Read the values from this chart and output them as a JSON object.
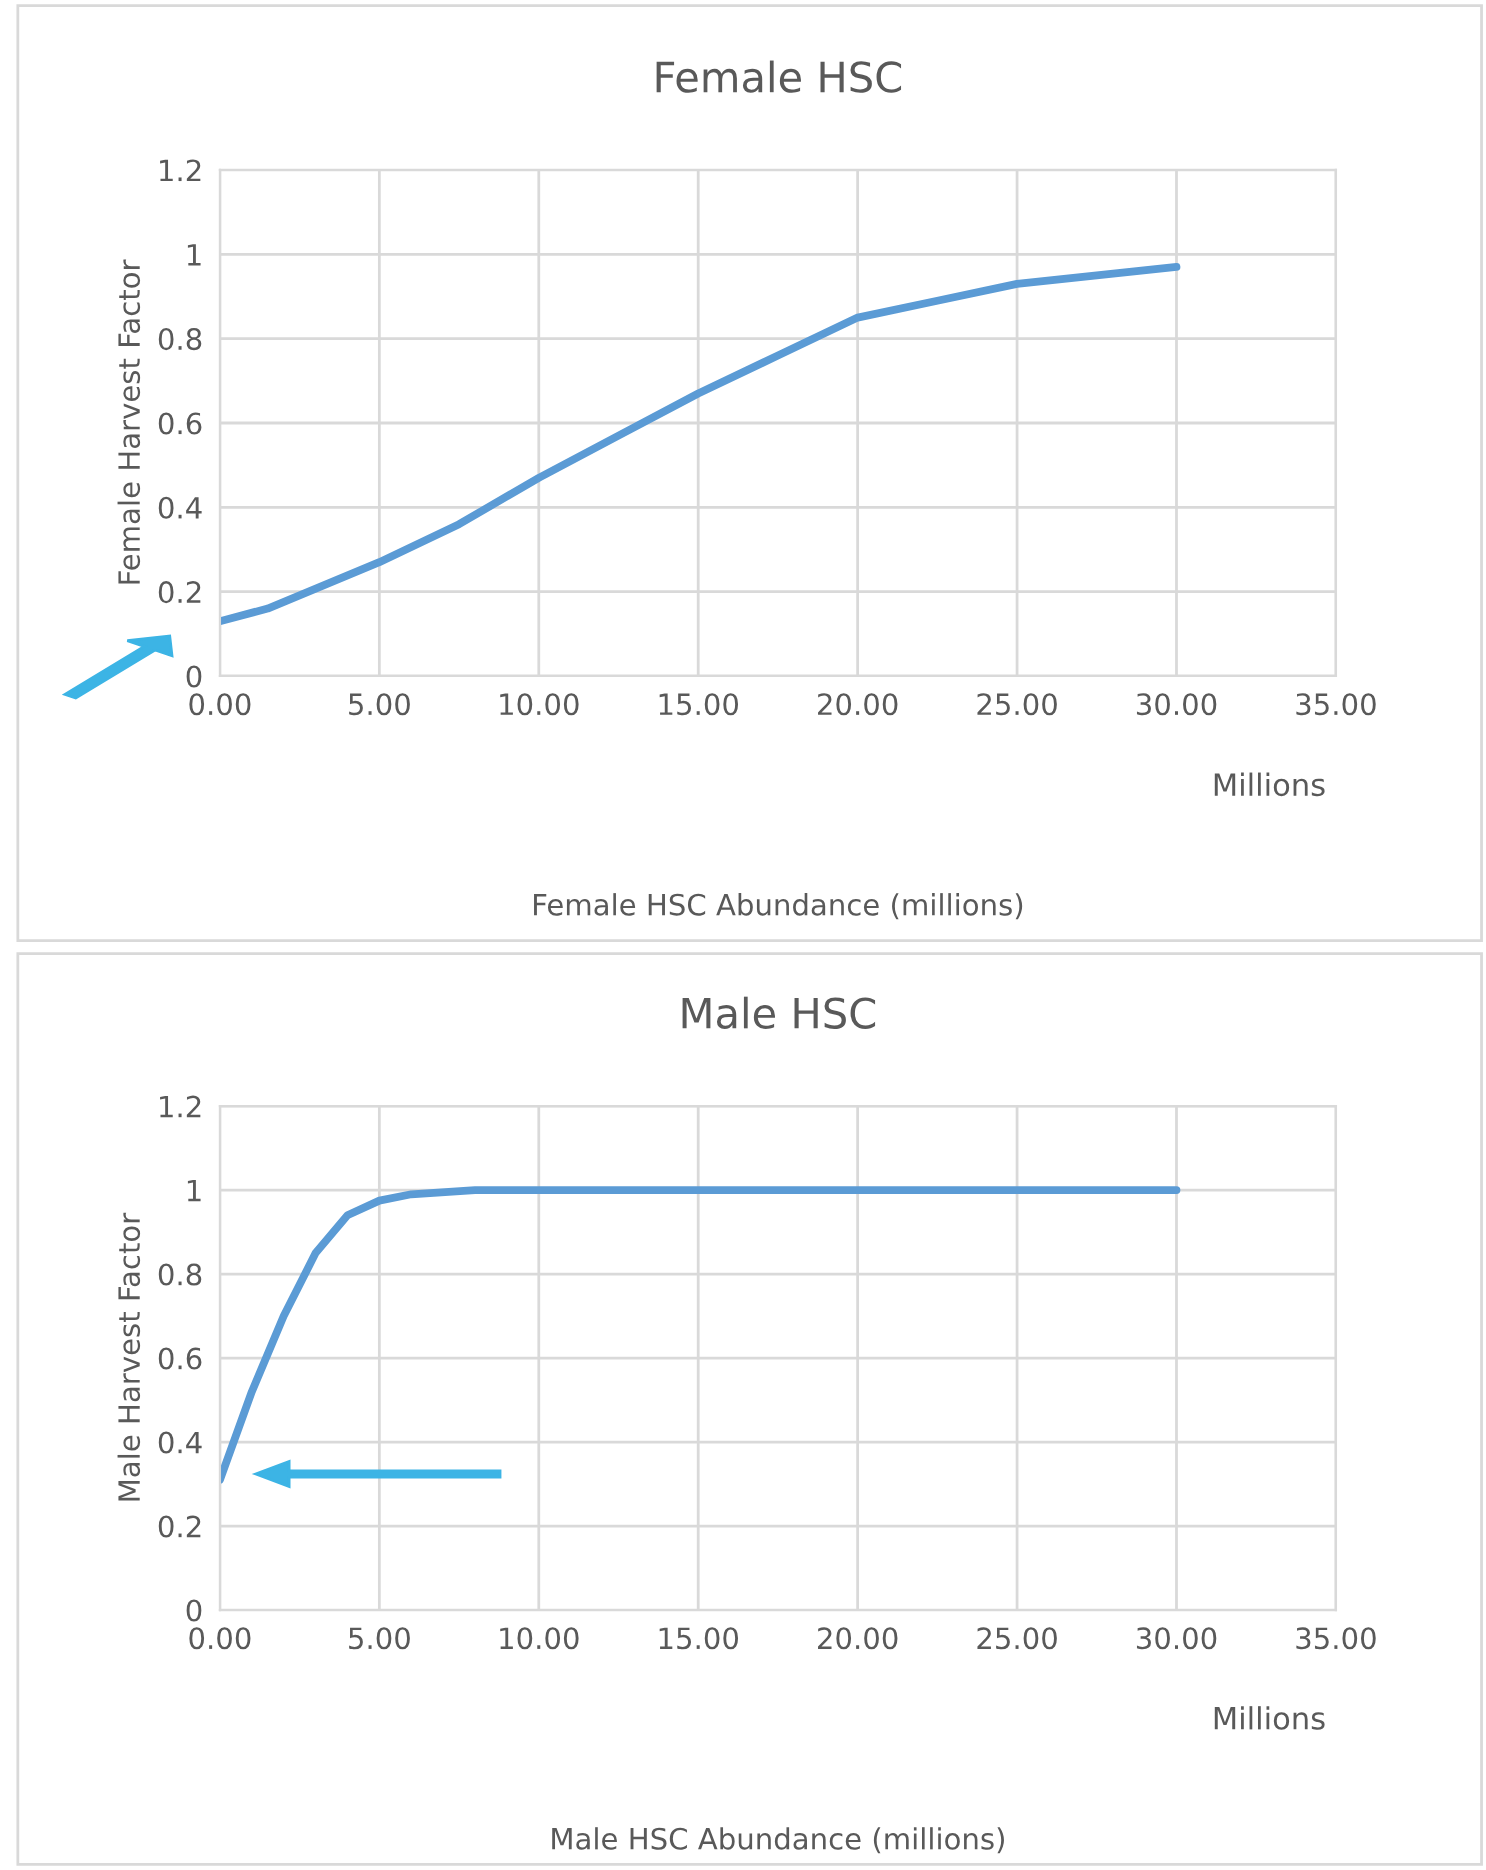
{
  "chart_data": [
    {
      "type": "line",
      "title": "Female HSC",
      "xlabel": "Female HSC Abundance (millions)",
      "ylabel": "Female Harvest Factor",
      "annotations": [
        "Millions"
      ],
      "x": [
        0,
        1.5,
        5,
        7.5,
        10,
        12.5,
        15,
        17.5,
        20,
        22.5,
        25,
        27.5,
        30
      ],
      "series": [
        {
          "color": "#5b9bd5",
          "values": [
            0.13,
            0.16,
            0.27,
            0.36,
            0.47,
            0.57,
            0.67,
            0.76,
            0.85,
            0.89,
            0.93,
            0.95,
            0.97
          ]
        }
      ],
      "xlim": [
        0,
        35
      ],
      "ylim": [
        0,
        1.2
      ],
      "xticks": [
        {
          "value": 0,
          "label": "0.00"
        },
        {
          "value": 5,
          "label": "5.00"
        },
        {
          "value": 10,
          "label": "10.00"
        },
        {
          "value": 15,
          "label": "15.00"
        },
        {
          "value": 20,
          "label": "20.00"
        },
        {
          "value": 25,
          "label": "25.00"
        },
        {
          "value": 30,
          "label": "30.00"
        },
        {
          "value": 35,
          "label": "35.00"
        }
      ],
      "yticks": [
        0,
        0.2,
        0.4,
        0.6,
        0.8,
        1,
        1.2
      ],
      "grid": true,
      "marker": "none",
      "line_style": "solid"
    },
    {
      "type": "line",
      "title": "Male HSC",
      "xlabel": "Male HSC Abundance (millions)",
      "ylabel": "Male Harvest Factor",
      "annotations": [
        "Millions"
      ],
      "x": [
        0,
        1,
        2,
        3,
        4,
        5,
        6,
        8,
        10,
        15,
        20,
        25,
        30
      ],
      "series": [
        {
          "color": "#5b9bd5",
          "values": [
            0.31,
            0.52,
            0.7,
            0.85,
            0.94,
            0.975,
            0.99,
            1,
            1,
            1,
            1,
            1,
            1
          ]
        }
      ],
      "xlim": [
        0,
        35
      ],
      "ylim": [
        0,
        1.2
      ],
      "xticks": [
        {
          "value": 0,
          "label": "0.00"
        },
        {
          "value": 5,
          "label": "5.00"
        },
        {
          "value": 10,
          "label": "10.00"
        },
        {
          "value": 15,
          "label": "15.00"
        },
        {
          "value": 20,
          "label": "20.00"
        },
        {
          "value": 25,
          "label": "25.00"
        },
        {
          "value": 30,
          "label": "30.00"
        },
        {
          "value": 35,
          "label": "35.00"
        }
      ],
      "yticks": [
        0,
        0.2,
        0.4,
        0.6,
        0.8,
        1,
        1.2
      ],
      "grid": true,
      "marker": "none",
      "line_style": "solid"
    }
  ]
}
